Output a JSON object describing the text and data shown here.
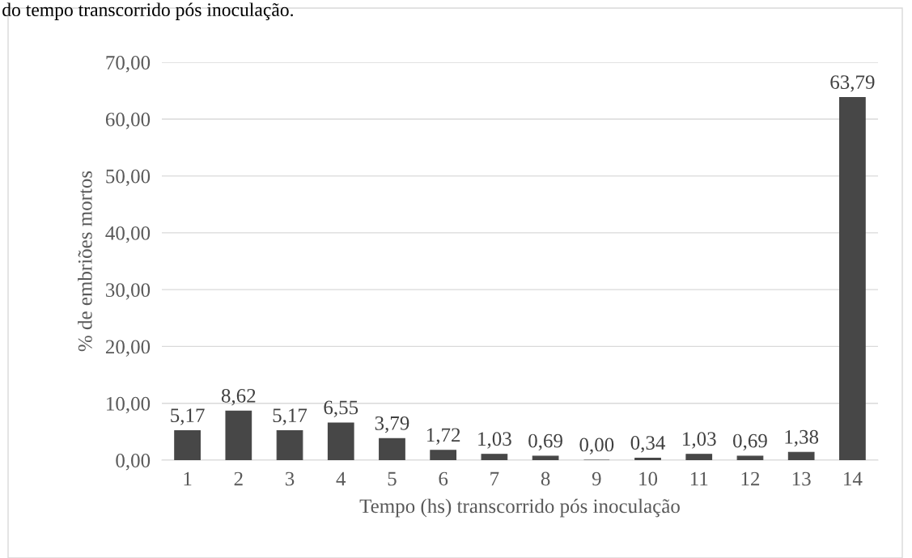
{
  "chart_data": {
    "type": "bar",
    "categories": [
      "1",
      "2",
      "3",
      "4",
      "5",
      "6",
      "7",
      "8",
      "9",
      "10",
      "11",
      "12",
      "13",
      "14"
    ],
    "values": [
      5.17,
      8.62,
      5.17,
      6.55,
      3.79,
      1.72,
      1.03,
      0.69,
      0.0,
      0.34,
      1.03,
      0.69,
      1.38,
      63.79
    ],
    "value_labels": [
      "5,17",
      "8,62",
      "5,17",
      "6,55",
      "3,79",
      "1,72",
      "1,03",
      "0,69",
      "0,00",
      "0,34",
      "1,03",
      "0,69",
      "1,38",
      "63,79"
    ],
    "color": "#474747",
    "xlabel": "Tempo (hs) transcorrido pós inoculação",
    "ylabel": "% de embriões mortos",
    "ylim": [
      0,
      70
    ],
    "yticks": [
      {
        "value": 0,
        "label": "0,00"
      },
      {
        "value": 10,
        "label": "10,00"
      },
      {
        "value": 20,
        "label": "20,00"
      },
      {
        "value": 30,
        "label": "30,00"
      },
      {
        "value": 40,
        "label": "40,00"
      },
      {
        "value": 50,
        "label": "50,00"
      },
      {
        "value": 60,
        "label": "60,00"
      },
      {
        "value": 70,
        "label": "70,00"
      }
    ],
    "grid": "y",
    "annotations": [
      "do tempo transcorrido pós inoculação."
    ]
  }
}
